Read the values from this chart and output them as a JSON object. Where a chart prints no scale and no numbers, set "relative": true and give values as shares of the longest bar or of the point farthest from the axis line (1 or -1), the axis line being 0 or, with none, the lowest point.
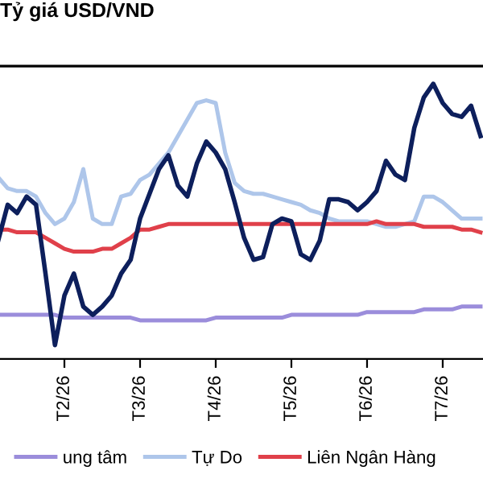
{
  "chart_data": {
    "type": "line",
    "title": "Tỷ giá USD/VND",
    "relative": true,
    "legend": "bottom",
    "grid": false,
    "marker": "none",
    "line_style": "solid",
    "categories": [
      null,
      null,
      null,
      null,
      null,
      null,
      null,
      "T2/26",
      null,
      null,
      null,
      null,
      null,
      null,
      null,
      "T3/26",
      null,
      null,
      null,
      null,
      null,
      null,
      null,
      "T4/26",
      null,
      null,
      null,
      null,
      null,
      null,
      null,
      "T5/26",
      null,
      null,
      null,
      null,
      null,
      null,
      null,
      "T6/26",
      null,
      null,
      null,
      null,
      null,
      null,
      null,
      "T7/26",
      null,
      null,
      null,
      null
    ],
    "series": [
      {
        "name": "ung tâm",
        "color": "#9b8ddb",
        "values": [
          0.16,
          0.16,
          0.16,
          0.16,
          0.16,
          0.16,
          0.16,
          0.15,
          0.15,
          0.15,
          0.15,
          0.15,
          0.15,
          0.15,
          0.15,
          0.14,
          0.14,
          0.14,
          0.14,
          0.14,
          0.14,
          0.14,
          0.14,
          0.15,
          0.15,
          0.15,
          0.15,
          0.15,
          0.15,
          0.15,
          0.15,
          0.16,
          0.16,
          0.16,
          0.16,
          0.16,
          0.16,
          0.16,
          0.16,
          0.17,
          0.17,
          0.17,
          0.17,
          0.17,
          0.17,
          0.18,
          0.18,
          0.18,
          0.18,
          0.19,
          0.19,
          0.19
        ]
      },
      {
        "name": "Tự Do",
        "color": "#aec6ea",
        "values": [
          0.66,
          0.62,
          0.61,
          0.61,
          0.59,
          0.53,
          0.49,
          0.51,
          0.57,
          0.69,
          0.51,
          0.49,
          0.49,
          0.59,
          0.6,
          0.65,
          0.67,
          0.71,
          0.75,
          0.81,
          0.87,
          0.93,
          0.94,
          0.93,
          0.75,
          0.64,
          0.61,
          0.6,
          0.6,
          0.59,
          0.58,
          0.57,
          0.56,
          0.54,
          0.53,
          0.51,
          0.5,
          0.5,
          0.5,
          0.5,
          0.49,
          0.48,
          0.48,
          0.49,
          0.5,
          0.59,
          0.59,
          0.57,
          0.54,
          0.51,
          0.51,
          0.51
        ]
      },
      {
        "name": "Liên Ngân Hàng",
        "color": "#e0404a",
        "values": [
          0.47,
          0.47,
          0.46,
          0.46,
          0.46,
          0.44,
          0.42,
          0.4,
          0.39,
          0.39,
          0.39,
          0.4,
          0.4,
          0.42,
          0.44,
          0.47,
          0.47,
          0.48,
          0.49,
          0.49,
          0.49,
          0.49,
          0.49,
          0.49,
          0.49,
          0.49,
          0.49,
          0.49,
          0.49,
          0.49,
          0.49,
          0.49,
          0.49,
          0.49,
          0.49,
          0.49,
          0.49,
          0.49,
          0.49,
          0.49,
          0.5,
          0.49,
          0.49,
          0.49,
          0.49,
          0.48,
          0.48,
          0.48,
          0.48,
          0.47,
          0.47,
          0.46
        ]
      },
      {
        "color": "#0d1f5c",
        "values": [
          0.43,
          0.56,
          0.53,
          0.59,
          0.56,
          0.31,
          0.05,
          0.23,
          0.31,
          0.19,
          0.16,
          0.19,
          0.23,
          0.31,
          0.36,
          0.51,
          0.6,
          0.69,
          0.74,
          0.63,
          0.59,
          0.71,
          0.79,
          0.75,
          0.69,
          0.57,
          0.44,
          0.36,
          0.37,
          0.49,
          0.51,
          0.5,
          0.38,
          0.36,
          0.43,
          0.58,
          0.58,
          0.57,
          0.54,
          0.57,
          0.61,
          0.72,
          0.67,
          0.65,
          0.84,
          0.95,
          1,
          0.93,
          0.89,
          0.88,
          0.92,
          0.81
        ]
      }
    ]
  }
}
